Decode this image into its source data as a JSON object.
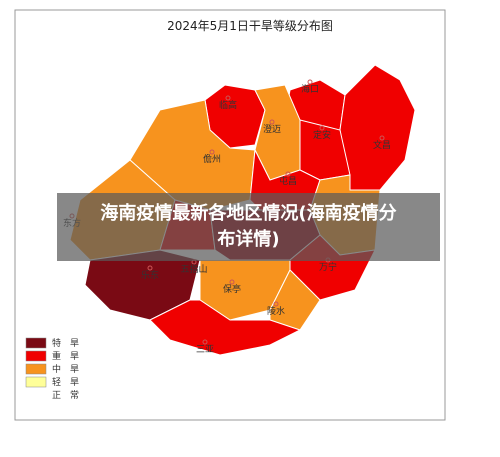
{
  "title": "2024年5月1日干旱等级分布图",
  "overlay": {
    "line1": "海南疫情最新各地区情况(海南疫情分",
    "line2": "布详情)"
  },
  "cities": [
    "临高",
    "海口",
    "澄迈",
    "定安",
    "文昌",
    "儋州",
    "屯昌",
    "东方",
    "乐东",
    "五指山",
    "万宁",
    "保亭",
    "陵水",
    "三亚"
  ],
  "legend": [
    {
      "label": "特　旱",
      "color": "#7a0a14"
    },
    {
      "label": "重　旱",
      "color": "#f00000"
    },
    {
      "label": "中　旱",
      "color": "#f7931e"
    },
    {
      "label": "轻　旱",
      "color": "#ffff99"
    },
    {
      "label": "正　常",
      "color": "#ffffff"
    }
  ]
}
